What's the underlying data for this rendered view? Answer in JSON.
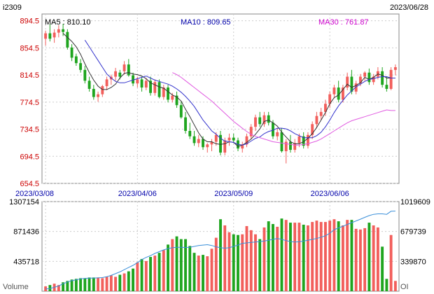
{
  "header": {
    "symbol": "i2309",
    "end_date": "2023/06/28"
  },
  "ma_labels": {
    "ma5": "MA5 : 810.10",
    "ma10": "MA10 : 809.65",
    "ma30": "MA30 : 761.87"
  },
  "colors": {
    "up": "#f25f5c",
    "down": "#1fa51f",
    "ma5": "#333333",
    "ma10": "#3333cc",
    "ma30": "#e05ae0",
    "oi": "#3a8fd9",
    "axis_red": "#cc0000",
    "axis_blue": "#0000aa",
    "grid": "#cccccc"
  },
  "chart_data": [
    {
      "type": "candlestick",
      "title": "i2309",
      "y_ticks": [
        "894.5",
        "854.5",
        "814.5",
        "774.5",
        "734.5",
        "694.5",
        "654.5"
      ],
      "ylim": [
        654.5,
        904.5
      ],
      "x_ticks": [
        "2023/03/08",
        "2023/04/06",
        "2023/05/09",
        "2023/06/06"
      ],
      "x_tick_index": [
        0,
        21,
        43,
        65
      ],
      "ohlc": [
        [
          868,
          880,
          858,
          876
        ],
        [
          876,
          890,
          864,
          868
        ],
        [
          870,
          882,
          862,
          877
        ],
        [
          877,
          888,
          870,
          882
        ],
        [
          882,
          890,
          872,
          878
        ],
        [
          878,
          882,
          852,
          855
        ],
        [
          855,
          860,
          835,
          840
        ],
        [
          842,
          846,
          828,
          832
        ],
        [
          832,
          838,
          818,
          822
        ],
        [
          822,
          828,
          802,
          806
        ],
        [
          806,
          812,
          790,
          794
        ],
        [
          794,
          800,
          778,
          782
        ],
        [
          782,
          790,
          775,
          786
        ],
        [
          786,
          800,
          782,
          798
        ],
        [
          798,
          812,
          792,
          808
        ],
        [
          808,
          815,
          800,
          812
        ],
        [
          812,
          825,
          806,
          820
        ],
        [
          818,
          822,
          808,
          812
        ],
        [
          820,
          835,
          815,
          830
        ],
        [
          830,
          838,
          812,
          814
        ],
        [
          814,
          818,
          798,
          802
        ],
        [
          802,
          812,
          796,
          808
        ],
        [
          808,
          812,
          790,
          796
        ],
        [
          796,
          810,
          792,
          806
        ],
        [
          806,
          812,
          784,
          788
        ],
        [
          788,
          808,
          784,
          804
        ],
        [
          804,
          808,
          780,
          782
        ],
        [
          782,
          800,
          778,
          796
        ],
        [
          796,
          800,
          774,
          778
        ],
        [
          778,
          788,
          774,
          784
        ],
        [
          784,
          790,
          766,
          770
        ],
        [
          770,
          776,
          750,
          752
        ],
        [
          752,
          760,
          728,
          732
        ],
        [
          732,
          744,
          720,
          724
        ],
        [
          724,
          732,
          710,
          714
        ],
        [
          714,
          726,
          708,
          720
        ],
        [
          720,
          724,
          704,
          708
        ],
        [
          708,
          714,
          700,
          712
        ],
        [
          712,
          720,
          702,
          716
        ],
        [
          716,
          730,
          710,
          726
        ],
        [
          726,
          732,
          696,
          700
        ],
        [
          700,
          722,
          696,
          718
        ],
        [
          718,
          728,
          710,
          722
        ],
        [
          722,
          728,
          714,
          718
        ],
        [
          718,
          722,
          702,
          706
        ],
        [
          706,
          716,
          700,
          712
        ],
        [
          712,
          728,
          708,
          724
        ],
        [
          724,
          742,
          720,
          738
        ],
        [
          738,
          756,
          732,
          752
        ],
        [
          752,
          760,
          738,
          742
        ],
        [
          742,
          760,
          738,
          755
        ],
        [
          755,
          760,
          740,
          744
        ],
        [
          744,
          748,
          720,
          724
        ],
        [
          724,
          736,
          718,
          730
        ],
        [
          730,
          736,
          700,
          702
        ],
        [
          702,
          720,
          684,
          716
        ],
        [
          716,
          726,
          700,
          704
        ],
        [
          704,
          720,
          700,
          714
        ],
        [
          714,
          728,
          708,
          724
        ],
        [
          724,
          730,
          706,
          710
        ],
        [
          710,
          730,
          706,
          726
        ],
        [
          726,
          746,
          720,
          742
        ],
        [
          742,
          760,
          736,
          754
        ],
        [
          754,
          766,
          748,
          760
        ],
        [
          760,
          778,
          754,
          772
        ],
        [
          772,
          790,
          766,
          786
        ],
        [
          786,
          800,
          780,
          796
        ],
        [
          796,
          806,
          774,
          778
        ],
        [
          778,
          800,
          774,
          796
        ],
        [
          796,
          818,
          792,
          812
        ],
        [
          812,
          822,
          786,
          790
        ],
        [
          790,
          806,
          786,
          802
        ],
        [
          802,
          816,
          798,
          812
        ],
        [
          812,
          820,
          806,
          818
        ],
        [
          818,
          824,
          800,
          804
        ],
        [
          804,
          816,
          800,
          812
        ],
        [
          812,
          826,
          808,
          820
        ],
        [
          820,
          826,
          796,
          800
        ],
        [
          800,
          812,
          790,
          794
        ],
        [
          794,
          826,
          792,
          822
        ],
        [
          822,
          830,
          814,
          826
        ]
      ],
      "series": [
        {
          "name": "MA5",
          "values": [
            null,
            null,
            null,
            null,
            876,
            870,
            864,
            856,
            845,
            831,
            818,
            807,
            798,
            793,
            793,
            796,
            801,
            810,
            817,
            818,
            816,
            815,
            813,
            809,
            803,
            800,
            797,
            795,
            790,
            785,
            782,
            776,
            764,
            753,
            741,
            729,
            720,
            716,
            716,
            713,
            712,
            713,
            716,
            715,
            709,
            711,
            715,
            720,
            727,
            735,
            746,
            748,
            744,
            739,
            730,
            723,
            716,
            713,
            713,
            716,
            721,
            728,
            737,
            748,
            759,
            772,
            781,
            785,
            793,
            801,
            796,
            799,
            803,
            811,
            808,
            811,
            816,
            814,
            810,
            810,
            810
          ]
        },
        {
          "name": "MA10",
          "values": [
            null,
            null,
            null,
            null,
            null,
            null,
            null,
            null,
            null,
            866,
            856,
            846,
            836,
            826,
            816,
            810,
            805,
            803,
            803,
            805,
            807,
            809,
            811,
            813,
            810,
            807,
            805,
            803,
            801,
            798,
            794,
            789,
            783,
            776,
            768,
            758,
            748,
            740,
            732,
            727,
            721,
            717,
            716,
            715,
            712,
            711,
            713,
            717,
            721,
            723,
            728,
            731,
            733,
            736,
            736,
            735,
            732,
            728,
            725,
            722,
            722,
            722,
            725,
            730,
            738,
            748,
            759,
            769,
            777,
            785,
            791,
            797,
            801,
            805,
            808,
            809,
            811,
            812,
            812,
            810,
            810
          ]
        },
        {
          "name": "MA30",
          "values": [
            null,
            null,
            null,
            null,
            null,
            null,
            null,
            null,
            null,
            null,
            null,
            null,
            null,
            null,
            null,
            null,
            null,
            null,
            null,
            null,
            null,
            null,
            null,
            null,
            null,
            null,
            null,
            null,
            null,
            818,
            815,
            811,
            806,
            801,
            796,
            791,
            786,
            781,
            776,
            770,
            764,
            758,
            752,
            746,
            741,
            736,
            731,
            727,
            724,
            722,
            720,
            718,
            716,
            715,
            714,
            713,
            712,
            711,
            711,
            712,
            713,
            715,
            717,
            720,
            724,
            728,
            732,
            736,
            740,
            744,
            747,
            749,
            751,
            753,
            755,
            757,
            759,
            761,
            763,
            762,
            762
          ]
        }
      ]
    },
    {
      "type": "bar",
      "title": "Volume",
      "y_ticks_left": [
        "1307154",
        "871436",
        "435718"
      ],
      "y_ticks_right": [
        "1019609",
        "679739",
        "339870"
      ],
      "right_axis_label": "OI",
      "ylim_volume": [
        0,
        1307154
      ],
      "ylim_oi": [
        0,
        1019609
      ],
      "volume": [
        70000,
        90000,
        110000,
        90000,
        130000,
        150000,
        170000,
        180000,
        190000,
        190000,
        200000,
        200000,
        200000,
        190000,
        210000,
        230000,
        210000,
        240000,
        260000,
        290000,
        330000,
        420000,
        470000,
        440000,
        500000,
        520000,
        560000,
        600000,
        680000,
        760000,
        800000,
        760000,
        760000,
        660000,
        560000,
        520000,
        530000,
        510000,
        620000,
        780000,
        1050000,
        960000,
        860000,
        830000,
        820000,
        830000,
        950000,
        890000,
        830000,
        760000,
        930000,
        1020000,
        980000,
        940000,
        1060000,
        1040000,
        1000000,
        1000000,
        1000000,
        970000,
        960000,
        1010000,
        1030000,
        1010000,
        1010000,
        1030000,
        1050000,
        1020000,
        960000,
        1040000,
        1040000,
        910000,
        900000,
        920000,
        1000000,
        960000,
        930000,
        650000,
        180000,
        820000,
        150000
      ],
      "oi": [
        25000,
        30000,
        45000,
        60000,
        85000,
        105000,
        120000,
        130000,
        140000,
        145000,
        150000,
        150000,
        152000,
        155000,
        165000,
        180000,
        200000,
        220000,
        245000,
        270000,
        295000,
        325000,
        360000,
        385000,
        405000,
        430000,
        450000,
        470000,
        485000,
        495000,
        500000,
        500000,
        498000,
        500000,
        510000,
        520000,
        525000,
        530000,
        520000,
        505000,
        495000,
        490000,
        495000,
        510000,
        525000,
        545000,
        550000,
        555000,
        560000,
        565000,
        570000,
        580000,
        590000,
        600000,
        590000,
        575000,
        565000,
        560000,
        562000,
        570000,
        580000,
        590000,
        600000,
        615000,
        630000,
        660000,
        700000,
        720000,
        740000,
        760000,
        780000,
        800000,
        820000,
        840000,
        860000,
        875000,
        880000,
        880000,
        875000,
        910000,
        912000
      ],
      "volume_color_by_candle": true
    }
  ]
}
